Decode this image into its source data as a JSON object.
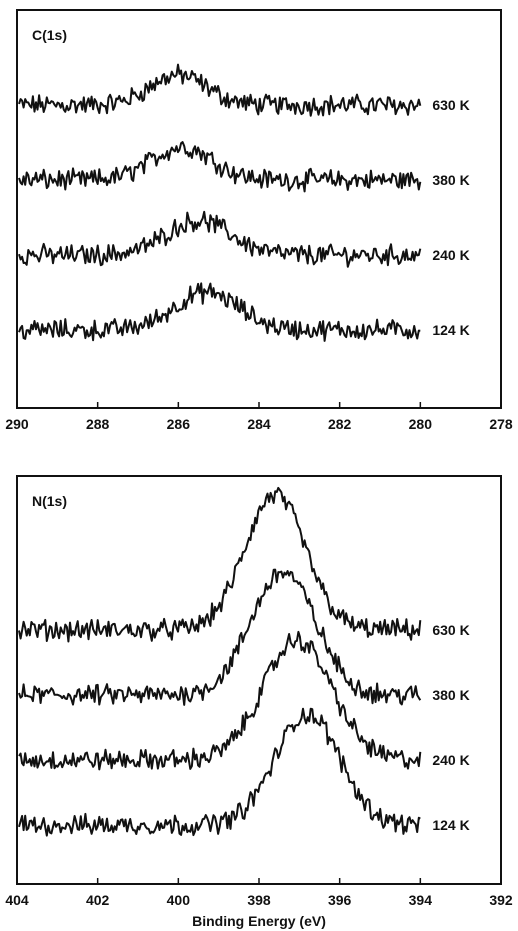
{
  "chart_data": [
    {
      "type": "line",
      "panel_label": "C(1s)",
      "xlabel": "",
      "ylabel": "",
      "xlim": [
        290,
        278
      ],
      "x_reversed": true,
      "x_ticks": [
        "290",
        "288",
        "286",
        "284",
        "282",
        "280",
        "278"
      ],
      "grid": false,
      "series": [
        {
          "name": "630 K",
          "baseline": 0.0,
          "peak_center": 286.0,
          "peak_height": 1.0,
          "peak_width": 0.7
        },
        {
          "name": "380 K",
          "baseline": 0.0,
          "peak_center": 285.9,
          "peak_height": 1.1,
          "peak_width": 0.75
        },
        {
          "name": "240 K",
          "baseline": 0.0,
          "peak_center": 285.5,
          "peak_height": 1.15,
          "peak_width": 0.8
        },
        {
          "name": "124 K",
          "baseline": 0.0,
          "peak_center": 285.3,
          "peak_height": 1.25,
          "peak_width": 0.8
        }
      ]
    },
    {
      "type": "line",
      "panel_label": "N(1s)",
      "xlabel": "Binding Energy (eV)",
      "ylabel": "",
      "xlim": [
        404,
        392
      ],
      "x_reversed": true,
      "x_ticks": [
        "404",
        "402",
        "400",
        "398",
        "396",
        "394",
        "392"
      ],
      "grid": false,
      "series": [
        {
          "name": "630 K",
          "baseline": 0.0,
          "peak_center": 397.6,
          "peak_height": 4.5,
          "peak_width": 0.75
        },
        {
          "name": "380 K",
          "baseline": 0.0,
          "peak_center": 397.4,
          "peak_height": 4.1,
          "peak_width": 0.8
        },
        {
          "name": "240 K",
          "baseline": 0.0,
          "peak_center": 397.05,
          "peak_height": 4.0,
          "peak_width": 0.85
        },
        {
          "name": "124 K",
          "baseline": 0.0,
          "peak_center": 396.8,
          "peak_height": 3.7,
          "peak_width": 0.8
        }
      ]
    }
  ]
}
